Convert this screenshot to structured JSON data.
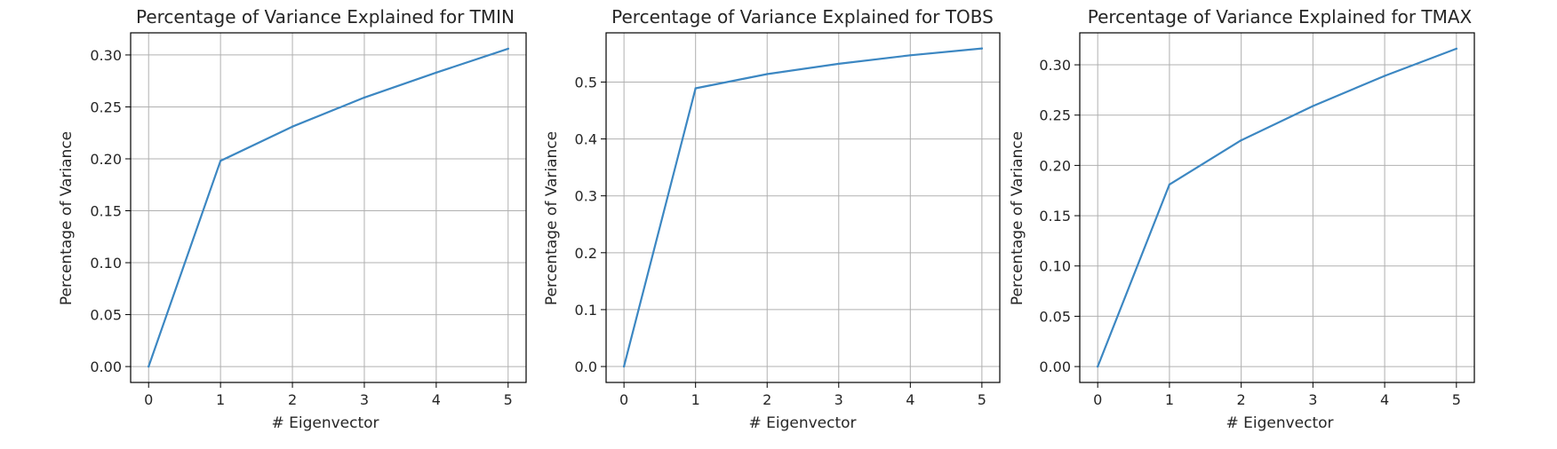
{
  "chart_data": [
    {
      "type": "line",
      "title": "Percentage of Variance Explained for TMIN",
      "xlabel": "# Eigenvector",
      "ylabel": "Percentage of Variance",
      "x": [
        0,
        1,
        2,
        3,
        4,
        5
      ],
      "series": [
        {
          "values": [
            0.0,
            0.198,
            0.231,
            0.259,
            0.283,
            0.306
          ]
        }
      ],
      "xticks": [
        0,
        1,
        2,
        3,
        4,
        5
      ],
      "yticks": [
        0.0,
        0.05,
        0.1,
        0.15,
        0.2,
        0.25,
        0.3
      ],
      "ytick_labels": [
        "0.00",
        "0.05",
        "0.10",
        "0.15",
        "0.20",
        "0.25",
        "0.30"
      ],
      "xlim": [
        -0.25,
        5.25
      ],
      "ylim": [
        -0.0153,
        0.3213
      ],
      "grid": true,
      "line_color": "#3c87c2"
    },
    {
      "type": "line",
      "title": "Percentage of Variance Explained for TOBS",
      "xlabel": "# Eigenvector",
      "ylabel": "Percentage of Variance",
      "x": [
        0,
        1,
        2,
        3,
        4,
        5
      ],
      "series": [
        {
          "values": [
            0.0,
            0.489,
            0.514,
            0.532,
            0.547,
            0.559
          ]
        }
      ],
      "xticks": [
        0,
        1,
        2,
        3,
        4,
        5
      ],
      "yticks": [
        0.0,
        0.1,
        0.2,
        0.3,
        0.4,
        0.5
      ],
      "ytick_labels": [
        "0.0",
        "0.1",
        "0.2",
        "0.3",
        "0.4",
        "0.5"
      ],
      "xlim": [
        -0.25,
        5.25
      ],
      "ylim": [
        -0.028,
        0.5865
      ],
      "grid": true,
      "line_color": "#3c87c2"
    },
    {
      "type": "line",
      "title": "Percentage of Variance Explained for TMAX",
      "xlabel": "# Eigenvector",
      "ylabel": "Percentage of Variance",
      "x": [
        0,
        1,
        2,
        3,
        4,
        5
      ],
      "series": [
        {
          "values": [
            0.0,
            0.181,
            0.225,
            0.259,
            0.289,
            0.316
          ]
        }
      ],
      "xticks": [
        0,
        1,
        2,
        3,
        4,
        5
      ],
      "yticks": [
        0.0,
        0.05,
        0.1,
        0.15,
        0.2,
        0.25,
        0.3
      ],
      "ytick_labels": [
        "0.00",
        "0.05",
        "0.10",
        "0.15",
        "0.20",
        "0.25",
        "0.30"
      ],
      "xlim": [
        -0.25,
        5.25
      ],
      "ylim": [
        -0.0158,
        0.3318
      ],
      "grid": true,
      "line_color": "#3c87c2"
    }
  ]
}
